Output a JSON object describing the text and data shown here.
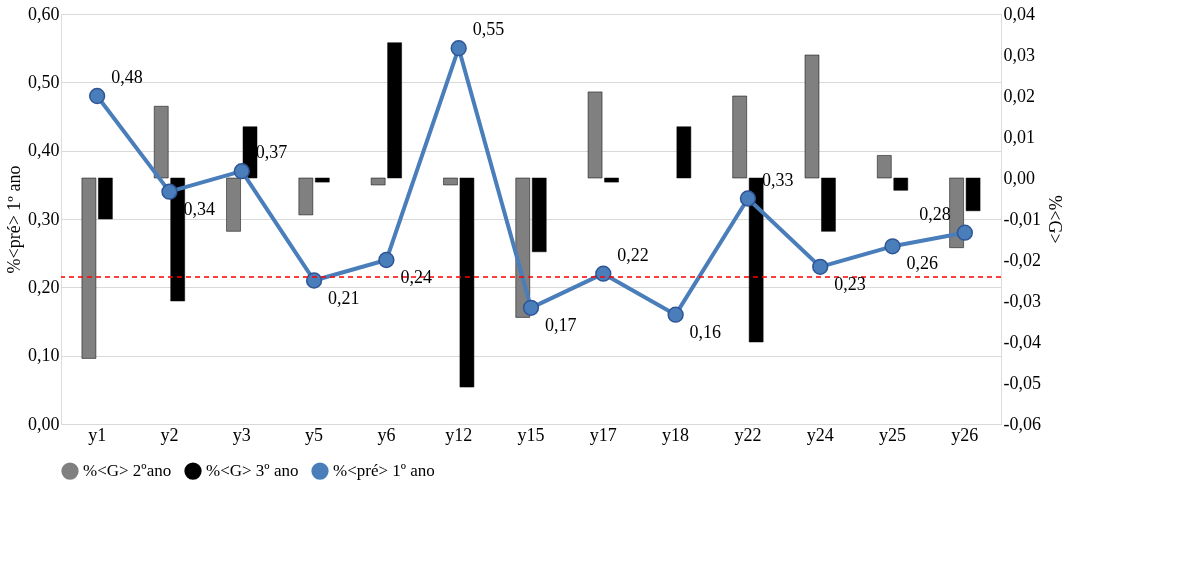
{
  "chart_data": {
    "type": "bar",
    "ylabel": "%<pré> 1º ano",
    "y2label": "%<G>",
    "categories": [
      "y1",
      "y2",
      "y3",
      "y5",
      "y6",
      "y12",
      "y15",
      "y17",
      "y18",
      "y22",
      "y24",
      "y25",
      "y26"
    ],
    "series": [
      {
        "name": "%<G> 2ºano",
        "axis": "y2",
        "color": "#808080",
        "values": [
          -0.044,
          0.0175,
          -0.013,
          -0.009,
          -0.0017,
          -0.0017,
          -0.034,
          0.021,
          null,
          0.02,
          0.03,
          0.0055,
          -0.017
        ]
      },
      {
        "name": "%<G> 3º ano",
        "axis": "y2",
        "color": "#000000",
        "values": [
          -0.01,
          -0.03,
          0.0125,
          -0.001,
          0.033,
          -0.051,
          -0.018,
          -0.001,
          0.0125,
          -0.04,
          -0.013,
          -0.003,
          -0.008
        ]
      },
      {
        "name": "%<pré> 1º ano",
        "type": "line",
        "axis": "y",
        "color": "#4a7ebb",
        "marker": "circle",
        "line_style": "solid",
        "values": [
          0.48,
          0.34,
          0.37,
          0.21,
          0.24,
          0.55,
          0.17,
          0.22,
          0.16,
          0.33,
          0.23,
          0.26,
          0.28
        ],
        "value_labels": [
          "0,48",
          "0,34",
          "0,37",
          "0,21",
          "0,24",
          "0,55",
          "0,17",
          "0,22",
          "0,16",
          "0,33",
          "0,23",
          "0,26",
          "0,28"
        ]
      }
    ],
    "ylim": [
      0,
      0.6
    ],
    "yticks": [
      {
        "value": 0,
        "label": "0,00"
      },
      {
        "value": 0.1,
        "label": "0,10"
      },
      {
        "value": 0.2,
        "label": "0,20"
      },
      {
        "value": 0.3,
        "label": "0,30"
      },
      {
        "value": 0.4,
        "label": "0,40"
      },
      {
        "value": 0.5,
        "label": "0,50"
      },
      {
        "value": 0.6,
        "label": "0,60"
      }
    ],
    "y2lim": [
      -0.06,
      0.04
    ],
    "y2ticks": [
      {
        "value": -0.06,
        "label": "-0,06"
      },
      {
        "value": -0.05,
        "label": "-0,05"
      },
      {
        "value": -0.04,
        "label": "-0,04"
      },
      {
        "value": -0.03,
        "label": "-0,03"
      },
      {
        "value": -0.02,
        "label": "-0,02"
      },
      {
        "value": -0.01,
        "label": "-0,01"
      },
      {
        "value": 0,
        "label": "0,00"
      },
      {
        "value": 0.01,
        "label": "0,01"
      },
      {
        "value": 0.02,
        "label": "0,02"
      },
      {
        "value": 0.03,
        "label": "0,03"
      },
      {
        "value": 0.04,
        "label": "0,04"
      }
    ],
    "ref_lines": [
      {
        "axis": "y",
        "value": 0.215,
        "color": "#ff0000",
        "line_style": "dashed"
      }
    ],
    "grid": "y",
    "legend": "bottom"
  }
}
